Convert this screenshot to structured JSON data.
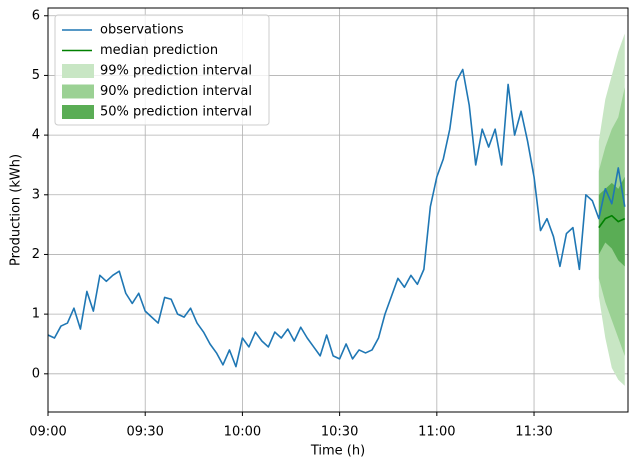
{
  "chart_data": {
    "type": "line",
    "xlabel": "Time (h)",
    "ylabel": "Production (kWh)",
    "xlim": [
      "09:00",
      "11:59"
    ],
    "xticks": [
      "09:00",
      "09:30",
      "10:00",
      "10:30",
      "11:00",
      "11:30"
    ],
    "ylim": [
      -0.64,
      6.13
    ],
    "yticks": [
      0,
      1,
      2,
      3,
      4,
      5,
      6
    ],
    "grid": true,
    "legend": "upper left",
    "series": [
      {
        "name": "observations",
        "color": "#1f77b4",
        "x": [
          "09:00",
          "09:02",
          "09:04",
          "09:06",
          "09:08",
          "09:10",
          "09:12",
          "09:14",
          "09:16",
          "09:18",
          "09:20",
          "09:22",
          "09:24",
          "09:26",
          "09:28",
          "09:30",
          "09:32",
          "09:34",
          "09:36",
          "09:38",
          "09:40",
          "09:42",
          "09:44",
          "09:46",
          "09:48",
          "09:50",
          "09:52",
          "09:54",
          "09:56",
          "09:58",
          "10:00",
          "10:02",
          "10:04",
          "10:06",
          "10:08",
          "10:10",
          "10:12",
          "10:14",
          "10:16",
          "10:18",
          "10:20",
          "10:22",
          "10:24",
          "10:26",
          "10:28",
          "10:30",
          "10:32",
          "10:34",
          "10:36",
          "10:38",
          "10:40",
          "10:42",
          "10:44",
          "10:46",
          "10:48",
          "10:50",
          "10:52",
          "10:54",
          "10:56",
          "10:58",
          "11:00",
          "11:02",
          "11:04",
          "11:06",
          "11:08",
          "11:10",
          "11:12",
          "11:14",
          "11:16",
          "11:18",
          "11:20",
          "11:22",
          "11:24",
          "11:26",
          "11:28",
          "11:30",
          "11:32",
          "11:34",
          "11:36",
          "11:38",
          "11:40",
          "11:42",
          "11:44",
          "11:46",
          "11:48",
          "11:50",
          "11:52",
          "11:54",
          "11:56",
          "11:58"
        ],
        "values": [
          0.65,
          0.6,
          0.8,
          0.85,
          1.1,
          0.75,
          1.38,
          1.05,
          1.65,
          1.55,
          1.65,
          1.72,
          1.35,
          1.18,
          1.35,
          1.05,
          0.95,
          0.85,
          1.28,
          1.25,
          1.0,
          0.95,
          1.1,
          0.85,
          0.7,
          0.5,
          0.35,
          0.15,
          0.4,
          0.12,
          0.6,
          0.45,
          0.7,
          0.55,
          0.45,
          0.7,
          0.6,
          0.75,
          0.55,
          0.78,
          0.6,
          0.45,
          0.3,
          0.65,
          0.3,
          0.25,
          0.5,
          0.25,
          0.4,
          0.35,
          0.4,
          0.6,
          1.0,
          1.3,
          1.6,
          1.45,
          1.65,
          1.5,
          1.75,
          2.8,
          3.3,
          3.6,
          4.1,
          4.9,
          5.1,
          4.5,
          3.5,
          4.1,
          3.8,
          4.1,
          3.5,
          4.85,
          4.0,
          4.4,
          3.9,
          3.3,
          2.4,
          2.6,
          2.3,
          1.8,
          2.35,
          2.45,
          1.75,
          3.0,
          2.9,
          2.6,
          3.1,
          2.85,
          3.45,
          2.8
        ]
      },
      {
        "name": "median prediction",
        "color": "#008000",
        "x": [
          "11:50",
          "11:52",
          "11:54",
          "11:56",
          "11:58"
        ],
        "values": [
          2.45,
          2.6,
          2.65,
          2.55,
          2.6
        ]
      }
    ],
    "bands": [
      {
        "name": "99% prediction interval",
        "color": "#c8e6c4",
        "x": [
          "11:50",
          "11:52",
          "11:54",
          "11:56",
          "11:58"
        ],
        "lower": [
          1.3,
          0.6,
          0.1,
          -0.1,
          -0.2
        ],
        "upper": [
          3.9,
          4.6,
          5.0,
          5.4,
          5.7
        ]
      },
      {
        "name": "90% prediction interval",
        "color": "#9bd194",
        "x": [
          "11:50",
          "11:52",
          "11:54",
          "11:56",
          "11:58"
        ],
        "lower": [
          1.6,
          1.2,
          0.9,
          0.6,
          0.3
        ],
        "upper": [
          3.4,
          3.8,
          4.1,
          4.3,
          4.8
        ]
      },
      {
        "name": "50% prediction interval",
        "color": "#5aad55",
        "x": [
          "11:50",
          "11:52",
          "11:54",
          "11:56",
          "11:58"
        ],
        "lower": [
          2.0,
          2.2,
          2.1,
          1.9,
          1.8
        ],
        "upper": [
          3.0,
          3.1,
          3.2,
          3.1,
          3.3
        ]
      }
    ]
  }
}
